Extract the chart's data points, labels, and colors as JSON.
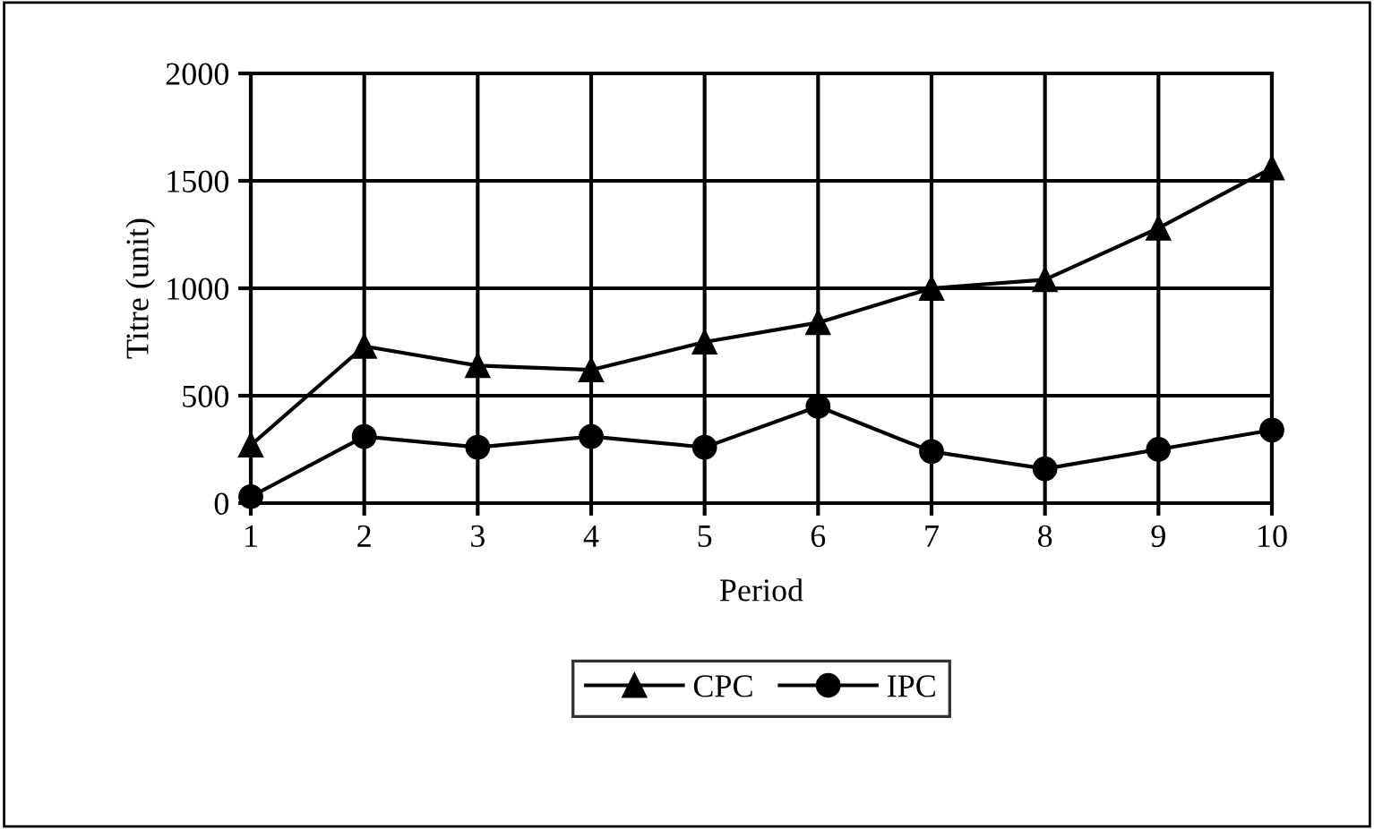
{
  "chart_data": {
    "type": "line",
    "xlabel": "Period",
    "ylabel": "Titre (unit)",
    "x": [
      1,
      2,
      3,
      4,
      5,
      6,
      7,
      8,
      9,
      10
    ],
    "series": [
      {
        "name": "CPC",
        "color": "#000000",
        "marker": "triangle",
        "values": [
          270,
          730,
          640,
          620,
          750,
          840,
          1000,
          1040,
          1280,
          1560
        ]
      },
      {
        "name": "IPC",
        "color": "#000000",
        "marker": "circle",
        "values": [
          30,
          310,
          260,
          310,
          260,
          450,
          240,
          160,
          250,
          340
        ]
      }
    ],
    "xlim": [
      1,
      10
    ],
    "xticks": [
      1,
      2,
      3,
      4,
      5,
      6,
      7,
      8,
      9,
      10
    ],
    "ylim": [
      0,
      2000
    ],
    "yticks": [
      0,
      500,
      1000,
      1500,
      2000
    ],
    "grid": true,
    "legend": "bottom",
    "line_style": "solid"
  }
}
